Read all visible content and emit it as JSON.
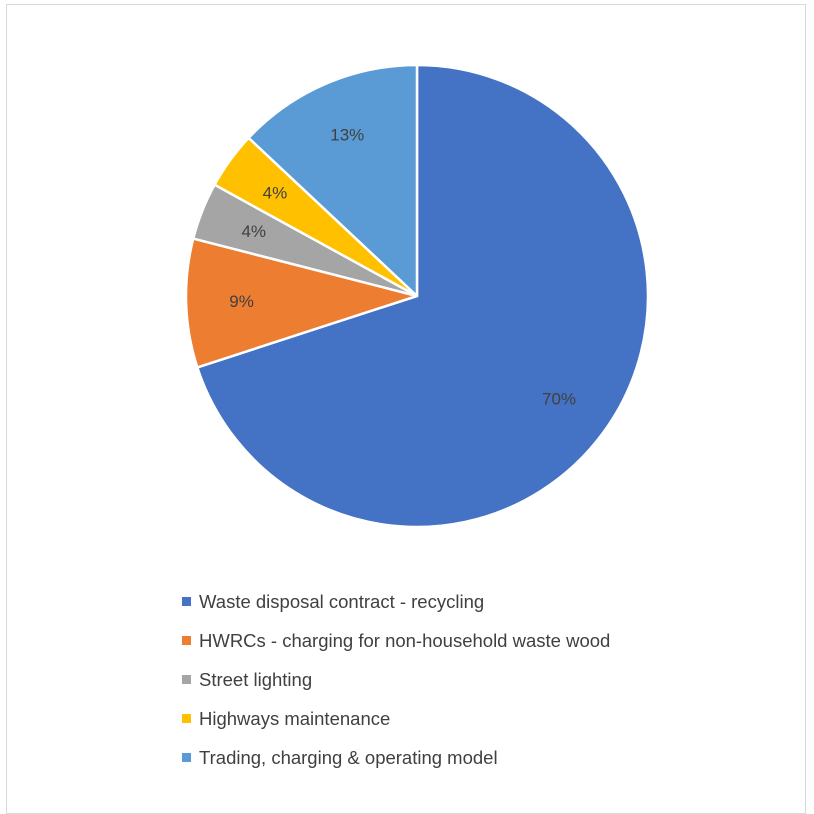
{
  "chart_data": {
    "type": "pie",
    "slices": [
      {
        "name": "Waste disposal contract - recycling",
        "value": 70,
        "label": "70%",
        "color": "#4472C4"
      },
      {
        "name": "HWRCs - charging for non-household waste wood",
        "value": 9,
        "label": "9%",
        "color": "#ED7D31"
      },
      {
        "name": "Street lighting",
        "value": 4,
        "label": "4%",
        "color": "#A5A5A5"
      },
      {
        "name": "Highways maintenance",
        "value": 4,
        "label": "4%",
        "color": "#FFC000"
      },
      {
        "name": "Trading, charging & operating model",
        "value": 13,
        "label": "13%",
        "color": "#5B9BD5"
      }
    ],
    "legend_position": "bottom"
  }
}
